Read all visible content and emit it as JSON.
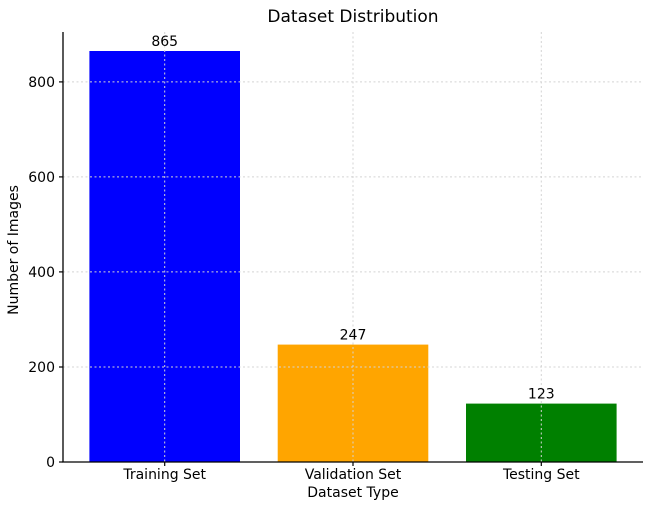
{
  "chart_data": {
    "type": "bar",
    "title": "Dataset Distribution",
    "xlabel": "Dataset Type",
    "ylabel": "Number of Images",
    "categories": [
      "Training Set",
      "Validation Set",
      "Testing Set"
    ],
    "values": [
      865,
      247,
      123
    ],
    "value_labels": [
      "865",
      "247",
      "123"
    ],
    "colors": [
      "#0000ff",
      "#ffa500",
      "#008000"
    ],
    "yticks": [
      0,
      200,
      400,
      600,
      800
    ],
    "ytick_labels": [
      "0",
      "200",
      "400",
      "600",
      "800"
    ],
    "ylim": [
      0,
      905
    ],
    "xlim": [
      -0.54,
      2.54
    ],
    "bar_width": 0.8,
    "grid": {
      "visible": true,
      "style": "dashed",
      "color": "#d4d4d4",
      "over_bars": true,
      "axes": "both"
    },
    "legend_position": "none",
    "spine_color": "#000000",
    "background": "#ffffff"
  }
}
